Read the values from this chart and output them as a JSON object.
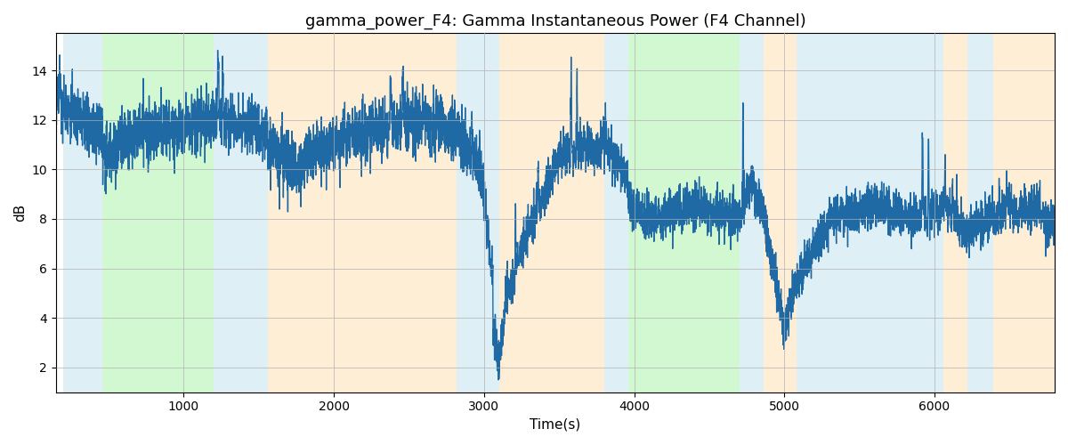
{
  "title": "gamma_power_F4: Gamma Instantaneous Power (F4 Channel)",
  "xlabel": "Time(s)",
  "ylabel": "dB",
  "ylim": [
    1,
    15.5
  ],
  "xlim": [
    150,
    6800
  ],
  "background_regions": [
    {
      "start": 200,
      "end": 460,
      "color": "#add8e6",
      "alpha": 0.4
    },
    {
      "start": 460,
      "end": 1200,
      "color": "#90ee90",
      "alpha": 0.4
    },
    {
      "start": 1200,
      "end": 1560,
      "color": "#add8e6",
      "alpha": 0.4
    },
    {
      "start": 1560,
      "end": 2820,
      "color": "#ffd59a",
      "alpha": 0.4
    },
    {
      "start": 2820,
      "end": 3100,
      "color": "#add8e6",
      "alpha": 0.4
    },
    {
      "start": 3100,
      "end": 3800,
      "color": "#ffd59a",
      "alpha": 0.4
    },
    {
      "start": 3800,
      "end": 3960,
      "color": "#add8e6",
      "alpha": 0.4
    },
    {
      "start": 3960,
      "end": 4700,
      "color": "#90ee90",
      "alpha": 0.4
    },
    {
      "start": 4700,
      "end": 4860,
      "color": "#add8e6",
      "alpha": 0.4
    },
    {
      "start": 4860,
      "end": 5080,
      "color": "#ffd59a",
      "alpha": 0.4
    },
    {
      "start": 5080,
      "end": 6060,
      "color": "#add8e6",
      "alpha": 0.4
    },
    {
      "start": 6060,
      "end": 6220,
      "color": "#ffd59a",
      "alpha": 0.4
    },
    {
      "start": 6220,
      "end": 6390,
      "color": "#add8e6",
      "alpha": 0.4
    },
    {
      "start": 6390,
      "end": 6800,
      "color": "#ffd59a",
      "alpha": 0.4
    }
  ],
  "line_color": "#1f6aa5",
  "line_width": 1.0,
  "grid_color": "#b0b0b0",
  "grid_alpha": 0.7,
  "title_fontsize": 13,
  "label_fontsize": 11,
  "tick_fontsize": 10,
  "yticks": [
    2,
    4,
    6,
    8,
    10,
    12,
    14
  ],
  "xticks": [
    1000,
    2000,
    3000,
    4000,
    5000,
    6000
  ]
}
